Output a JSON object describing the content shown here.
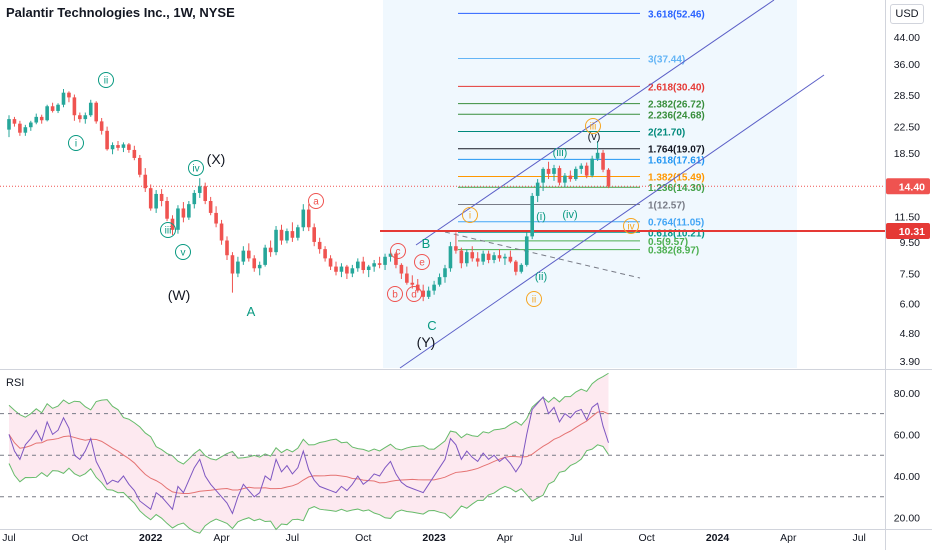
{
  "header": {
    "title": "Palantir Technologies Inc., 1W, NYSE",
    "currency": "USD"
  },
  "rsi_panel": {
    "label": "RSI"
  },
  "price_badges": {
    "current": "14.40",
    "line": "10.31"
  },
  "colors": {
    "up": "#26a69a",
    "down": "#ef5350",
    "channel": "#5b5fc7",
    "rsi": "#7e57c2",
    "rsi_ma": "#e57373",
    "band": "#66bb6a"
  },
  "chart_data": [
    {
      "type": "candlestick",
      "title": "Palantir Technologies Inc., 1W, NYSE",
      "y_scale": "log",
      "ylim": [
        3.7,
        58
      ],
      "y_ticks": [
        44.0,
        36.0,
        28.5,
        22.5,
        18.5,
        14.5,
        11.5,
        9.5,
        7.5,
        6.0,
        4.8,
        3.9
      ],
      "y_tick_labels": [
        "44.00",
        "36.00",
        "28.50",
        "22.50",
        "18.50",
        "14.50",
        "11.50",
        "9.50",
        "7.50",
        "6.00",
        "4.80",
        "3.90"
      ],
      "x_ticks": [
        "Jul",
        "Oct",
        "2022",
        "Apr",
        "Jul",
        "Oct",
        "2023",
        "Apr",
        "Jul",
        "Oct",
        "2024",
        "Apr",
        "Jul"
      ],
      "x_tick_weeks": [
        0,
        13,
        26,
        39,
        52,
        65,
        78,
        91,
        104,
        117,
        130,
        143,
        156
      ],
      "current_price": 14.4,
      "horizontal_line": 10.31,
      "candles": [
        [
          22.0,
          24.5,
          20.8,
          23.8
        ],
        [
          23.8,
          24.2,
          22.5,
          23.0
        ],
        [
          23.0,
          23.5,
          21.0,
          21.5
        ],
        [
          21.5,
          22.8,
          21.0,
          22.4
        ],
        [
          22.4,
          23.5,
          21.8,
          23.2
        ],
        [
          23.2,
          24.8,
          22.9,
          24.2
        ],
        [
          24.2,
          24.6,
          23.0,
          23.6
        ],
        [
          23.6,
          26.5,
          23.4,
          26.2
        ],
        [
          26.2,
          26.9,
          25.0,
          25.3
        ],
        [
          25.3,
          26.8,
          24.9,
          26.5
        ],
        [
          26.5,
          29.8,
          26.0,
          29.0
        ],
        [
          29.0,
          29.3,
          27.0,
          28.0
        ],
        [
          28.0,
          28.6,
          23.5,
          24.5
        ],
        [
          24.5,
          25.0,
          23.2,
          23.8
        ],
        [
          23.8,
          25.0,
          23.0,
          24.5
        ],
        [
          24.5,
          27.5,
          24.2,
          26.9
        ],
        [
          26.9,
          27.2,
          23.0,
          23.4
        ],
        [
          23.4,
          24.0,
          21.2,
          21.8
        ],
        [
          21.8,
          22.5,
          18.8,
          19.0
        ],
        [
          19.0,
          20.0,
          18.3,
          19.6
        ],
        [
          19.6,
          20.2,
          18.8,
          19.2
        ],
        [
          19.2,
          20.0,
          18.6,
          19.7
        ],
        [
          19.7,
          19.9,
          18.5,
          18.9
        ],
        [
          18.9,
          19.5,
          17.5,
          17.8
        ],
        [
          17.8,
          18.2,
          15.4,
          15.7
        ],
        [
          15.7,
          16.5,
          13.8,
          14.2
        ],
        [
          14.2,
          14.6,
          12.0,
          12.2
        ],
        [
          12.2,
          14.0,
          11.8,
          13.6
        ],
        [
          13.6,
          14.1,
          12.4,
          12.9
        ],
        [
          12.9,
          13.3,
          11.1,
          11.3
        ],
        [
          11.3,
          11.6,
          10.0,
          10.4
        ],
        [
          10.4,
          12.5,
          10.1,
          12.2
        ],
        [
          12.2,
          12.8,
          11.0,
          11.4
        ],
        [
          11.4,
          12.9,
          11.2,
          12.6
        ],
        [
          12.6,
          14.0,
          12.2,
          13.7
        ],
        [
          13.7,
          15.3,
          13.2,
          14.4
        ],
        [
          14.4,
          14.8,
          12.6,
          12.9
        ],
        [
          12.9,
          13.3,
          11.6,
          11.8
        ],
        [
          11.8,
          12.4,
          10.6,
          10.9
        ],
        [
          10.9,
          11.2,
          9.3,
          9.6
        ],
        [
          9.6,
          9.9,
          8.3,
          8.6
        ],
        [
          8.6,
          8.8,
          6.5,
          7.5
        ],
        [
          7.5,
          8.5,
          7.3,
          8.2
        ],
        [
          8.2,
          9.2,
          8.0,
          8.9
        ],
        [
          8.9,
          9.4,
          8.2,
          8.4
        ],
        [
          8.4,
          8.6,
          7.6,
          7.8
        ],
        [
          7.8,
          8.2,
          7.4,
          8.0
        ],
        [
          8.0,
          9.3,
          7.9,
          9.1
        ],
        [
          9.1,
          9.6,
          8.5,
          8.8
        ],
        [
          8.8,
          10.7,
          8.6,
          10.4
        ],
        [
          10.4,
          10.8,
          9.3,
          9.6
        ],
        [
          9.6,
          10.5,
          9.4,
          10.3
        ],
        [
          10.3,
          11.0,
          9.5,
          9.8
        ],
        [
          9.8,
          10.8,
          9.6,
          10.6
        ],
        [
          10.6,
          12.6,
          10.3,
          12.1
        ],
        [
          12.1,
          12.6,
          10.3,
          10.6
        ],
        [
          10.6,
          10.9,
          9.2,
          9.5
        ],
        [
          9.5,
          9.8,
          8.7,
          9.0
        ],
        [
          9.0,
          9.2,
          8.2,
          8.4
        ],
        [
          8.4,
          8.6,
          7.7,
          7.9
        ],
        [
          7.9,
          8.2,
          7.4,
          7.6
        ],
        [
          7.6,
          8.1,
          7.3,
          7.9
        ],
        [
          7.9,
          8.0,
          7.2,
          7.5
        ],
        [
          7.5,
          8.0,
          7.3,
          7.8
        ],
        [
          7.8,
          8.4,
          7.6,
          8.2
        ],
        [
          8.2,
          8.5,
          7.5,
          7.7
        ],
        [
          7.7,
          8.0,
          7.3,
          7.9
        ],
        [
          7.9,
          8.3,
          7.6,
          8.1
        ],
        [
          8.1,
          8.5,
          7.8,
          8.0
        ],
        [
          8.0,
          8.7,
          7.7,
          8.5
        ],
        [
          8.5,
          8.9,
          8.2,
          8.7
        ],
        [
          8.7,
          8.8,
          7.8,
          8.0
        ],
        [
          8.0,
          8.1,
          7.2,
          7.5
        ],
        [
          7.5,
          7.9,
          6.9,
          7.0
        ],
        [
          7.0,
          7.4,
          6.7,
          6.9
        ],
        [
          6.9,
          7.2,
          6.5,
          6.6
        ],
        [
          6.6,
          6.9,
          6.1,
          6.3
        ],
        [
          6.3,
          6.8,
          6.2,
          6.6
        ],
        [
          6.6,
          7.1,
          6.4,
          6.9
        ],
        [
          6.9,
          7.5,
          6.8,
          7.3
        ],
        [
          7.3,
          8.0,
          7.0,
          7.8
        ],
        [
          7.8,
          9.5,
          7.6,
          9.2
        ],
        [
          9.2,
          10.2,
          8.7,
          8.9
        ],
        [
          8.9,
          9.1,
          7.8,
          8.1
        ],
        [
          8.1,
          9.0,
          7.9,
          8.8
        ],
        [
          8.8,
          9.2,
          8.2,
          8.4
        ],
        [
          8.4,
          8.8,
          7.9,
          8.2
        ],
        [
          8.2,
          8.9,
          8.0,
          8.7
        ],
        [
          8.7,
          8.9,
          8.1,
          8.3
        ],
        [
          8.3,
          8.8,
          8.1,
          8.6
        ],
        [
          8.6,
          9.0,
          8.2,
          8.4
        ],
        [
          8.4,
          8.7,
          8.0,
          8.5
        ],
        [
          8.5,
          8.9,
          8.1,
          8.2
        ],
        [
          8.2,
          8.3,
          7.4,
          7.6
        ],
        [
          7.6,
          8.1,
          7.5,
          8.0
        ],
        [
          8.0,
          10.2,
          7.9,
          9.9
        ],
        [
          9.9,
          13.7,
          9.7,
          13.4
        ],
        [
          13.4,
          15.2,
          12.8,
          14.8
        ],
        [
          14.8,
          16.6,
          13.9,
          16.4
        ],
        [
          16.4,
          17.3,
          15.2,
          15.8
        ],
        [
          15.8,
          16.9,
          15.0,
          16.5
        ],
        [
          16.5,
          16.8,
          14.5,
          14.8
        ],
        [
          14.8,
          15.9,
          14.3,
          15.6
        ],
        [
          15.6,
          16.2,
          14.9,
          15.2
        ],
        [
          15.2,
          16.7,
          15.0,
          16.4
        ],
        [
          16.4,
          17.1,
          15.8,
          16.8
        ],
        [
          16.8,
          17.2,
          15.3,
          15.6
        ],
        [
          15.6,
          18.1,
          15.4,
          17.7
        ],
        [
          17.7,
          20.2,
          17.4,
          18.5
        ],
        [
          18.5,
          18.9,
          16.0,
          16.3
        ],
        [
          16.3,
          16.5,
          14.2,
          14.4
        ]
      ],
      "rsi_panel": {
        "ylim": [
          15,
          90
        ],
        "y_ticks": [
          80.0,
          60.0,
          40.0,
          20.0
        ],
        "y_tick_labels": [
          "80.00",
          "60.00",
          "40.00",
          "20.00"
        ],
        "levels": [
          70,
          50,
          30
        ],
        "rsi": [
          60,
          52,
          48,
          55,
          58,
          62,
          57,
          66,
          60,
          62,
          68,
          63,
          50,
          48,
          52,
          58,
          47,
          42,
          36,
          38,
          37,
          40,
          36,
          33,
          28,
          26,
          24,
          32,
          30,
          27,
          24,
          35,
          32,
          38,
          44,
          48,
          40,
          36,
          33,
          30,
          27,
          22,
          30,
          36,
          33,
          30,
          32,
          40,
          38,
          48,
          42,
          45,
          41,
          44,
          52,
          43,
          38,
          35,
          34,
          33,
          32,
          35,
          33,
          36,
          40,
          36,
          38,
          41,
          40,
          44,
          47,
          41,
          37,
          35,
          34,
          33,
          32,
          36,
          40,
          44,
          48,
          58,
          55,
          48,
          52,
          49,
          47,
          51,
          48,
          50,
          47,
          49,
          46,
          42,
          46,
          60,
          72,
          75,
          78,
          70,
          73,
          66,
          70,
          68,
          71,
          72,
          67,
          73,
          75,
          64,
          56
        ],
        "rsi_ma_sample": [
          58,
          57,
          56,
          54,
          52,
          50,
          48,
          46,
          44,
          42,
          40,
          38,
          37,
          36,
          36,
          37,
          37,
          38,
          38,
          38,
          38,
          38,
          39,
          39,
          40,
          41,
          42,
          43,
          44,
          45,
          46,
          48,
          50,
          52,
          55,
          58,
          60,
          62
        ]
      }
    }
  ],
  "annotations": {
    "wave_labels_green": [
      "i",
      "ii",
      "iii",
      "iv",
      "v",
      "(X)",
      "(W)",
      "A",
      "B",
      "C",
      "(Y)"
    ],
    "wave_labels_red": [
      "a",
      "b",
      "c",
      "d",
      "e"
    ],
    "wave_labels_small": [
      "(i)",
      "(ii)",
      "(iii)",
      "(iv)",
      "(v)"
    ],
    "wave_labels_orange": [
      "i",
      "ii",
      "iii",
      "iv"
    ],
    "fib_levels": [
      {
        "label": "3.618(52.46)",
        "price": 52.46,
        "color": "#2962ff"
      },
      {
        "label": "3(37.44)",
        "price": 37.44,
        "color": "#64b5f6"
      },
      {
        "label": "2.618(30.40)",
        "price": 30.4,
        "color": "#e53935"
      },
      {
        "label": "2.382(26.72)",
        "price": 26.72,
        "color": "#388e3c"
      },
      {
        "label": "2.236(24.68)",
        "price": 24.68,
        "color": "#388e3c"
      },
      {
        "label": "2(21.70)",
        "price": 21.7,
        "color": "#00897b"
      },
      {
        "label": "1.764(19.07)",
        "price": 19.07,
        "color": "#131722"
      },
      {
        "label": "1.618(17.61)",
        "price": 17.61,
        "color": "#2196f3"
      },
      {
        "label": "1.382(15.49)",
        "price": 15.49,
        "color": "#ff9800"
      },
      {
        "label": "1.236(14.30)",
        "price": 14.3,
        "color": "#43a047"
      },
      {
        "label": "1(12.57)",
        "price": 12.57,
        "color": "#787b86"
      },
      {
        "label": "0.764(11.05)",
        "price": 11.05,
        "color": "#42a5f5"
      },
      {
        "label": "0.618(10.21)",
        "price": 10.21,
        "color": "#009688"
      },
      {
        "label": "0.5(9.57)",
        "price": 9.57,
        "color": "#4caf50"
      },
      {
        "label": "0.382(8.97)",
        "price": 8.97,
        "color": "#4caf50"
      }
    ]
  }
}
